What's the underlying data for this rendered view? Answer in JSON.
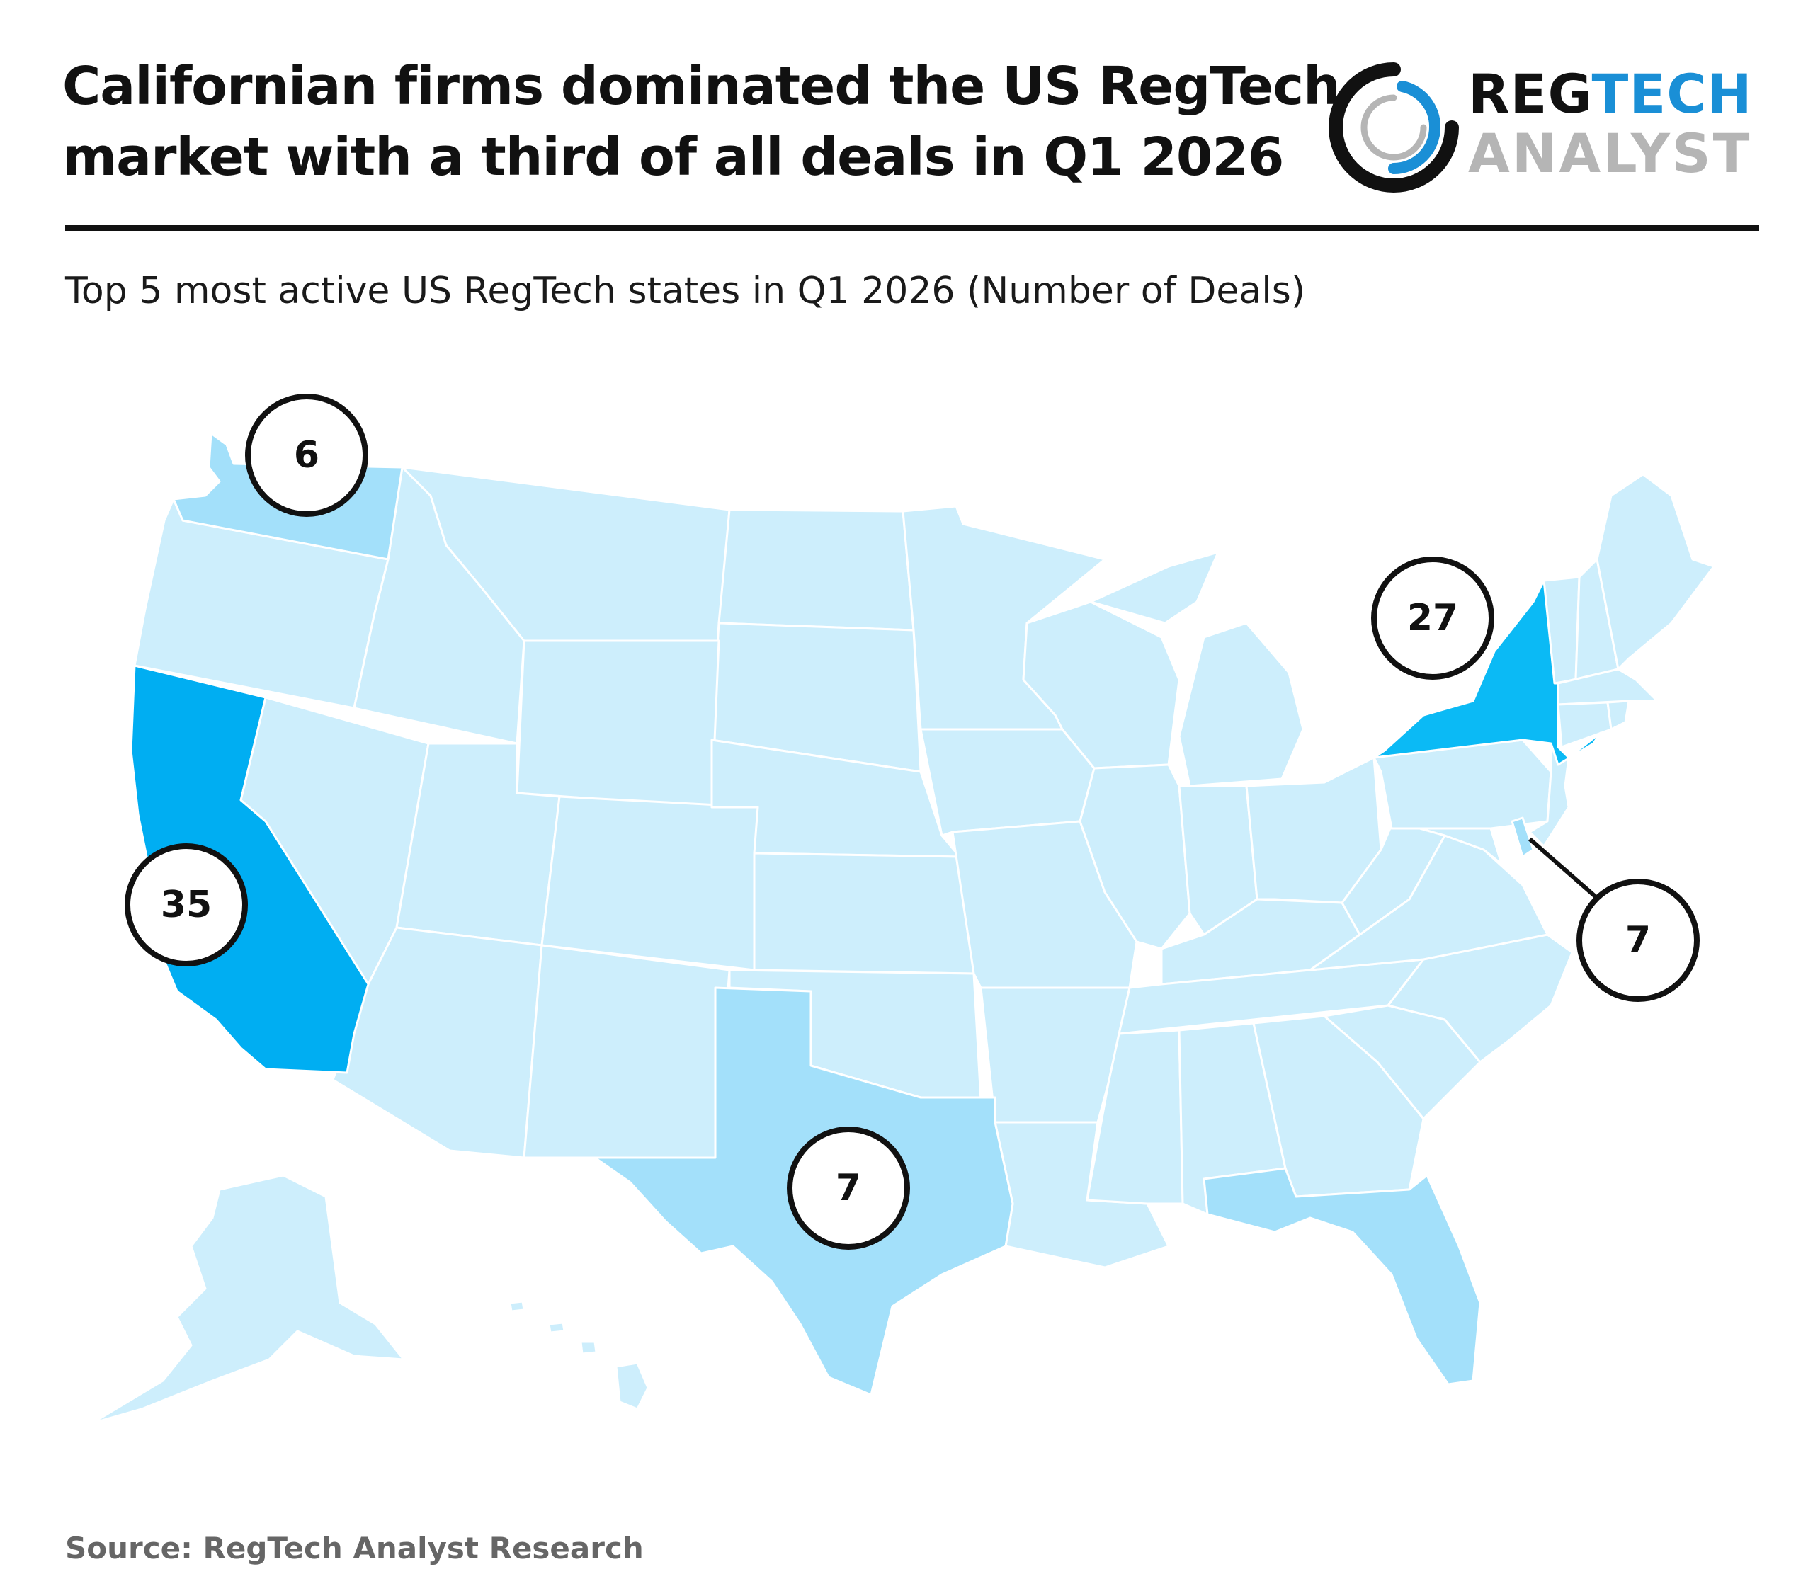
{
  "header": {
    "title_line1": "Californian firms dominated the US RegTech",
    "title_line2": "market with a third of all deals in Q1 2026"
  },
  "logo": {
    "word1_part1": "REG",
    "word1_part2": "TECH",
    "word2": "ANALYST",
    "colors": {
      "dark": "#111111",
      "blue": "#1a8fd6",
      "gray": "#b5b5b5"
    }
  },
  "subtitle": "Top 5 most active US RegTech states in Q1 2026 (Number of Deals)",
  "source": "Source: RegTech Analyst Research",
  "colors": {
    "base_state": "#cdeefc",
    "state_border": "#ffffff",
    "level_low": "#a3e0fa",
    "level_mid": "#0bbaf5",
    "level_high": "#00aef2",
    "bubble_fill": "#ffffff",
    "bubble_stroke": "#111111"
  },
  "highlighted_states": [
    {
      "state": "California",
      "deals": "35",
      "color_key": "level_high"
    },
    {
      "state": "New York",
      "deals": "27",
      "color_key": "level_mid"
    },
    {
      "state": "Texas",
      "deals": "7",
      "color_key": "level_low"
    },
    {
      "state": "Delaware",
      "deals": "7",
      "color_key": "level_low"
    },
    {
      "state": "Washington",
      "deals": "6",
      "color_key": "level_low"
    },
    {
      "state": "Florida",
      "color_key": "level_low"
    }
  ]
}
